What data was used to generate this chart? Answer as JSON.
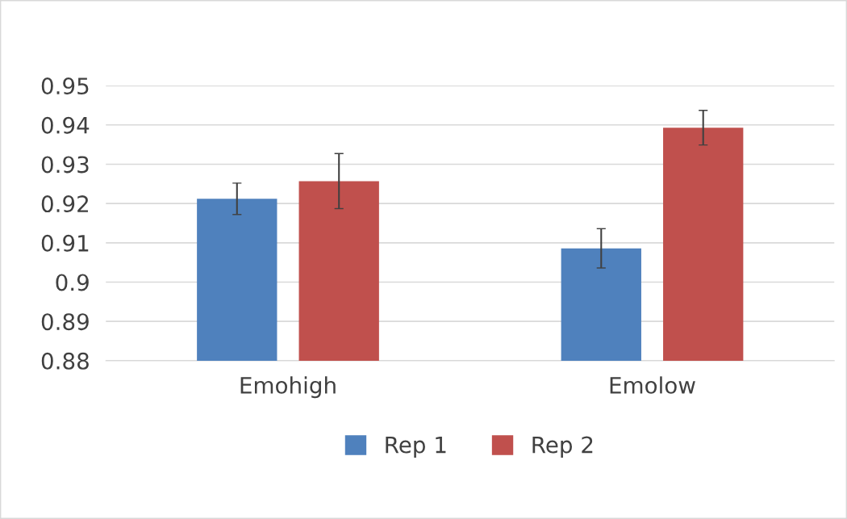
{
  "chart_data": {
    "type": "bar",
    "categories": [
      "Emohigh",
      "Emolow"
    ],
    "series": [
      {
        "name": "Rep 1",
        "color": "#4f81bd",
        "values": [
          0.9212,
          0.9086
        ],
        "errors": [
          0.004,
          0.005
        ]
      },
      {
        "name": "Rep 2",
        "color": "#c0504d",
        "values": [
          0.9257,
          0.9393
        ],
        "errors": [
          0.007,
          0.0044
        ]
      }
    ],
    "ylim": [
      0.88,
      0.95
    ],
    "yticks": [
      0.88,
      0.89,
      {
        "value": 0.9,
        "label": "0.9"
      },
      0.91,
      0.92,
      0.93,
      0.94,
      0.95
    ],
    "grid": "y",
    "legend": "bottom"
  }
}
